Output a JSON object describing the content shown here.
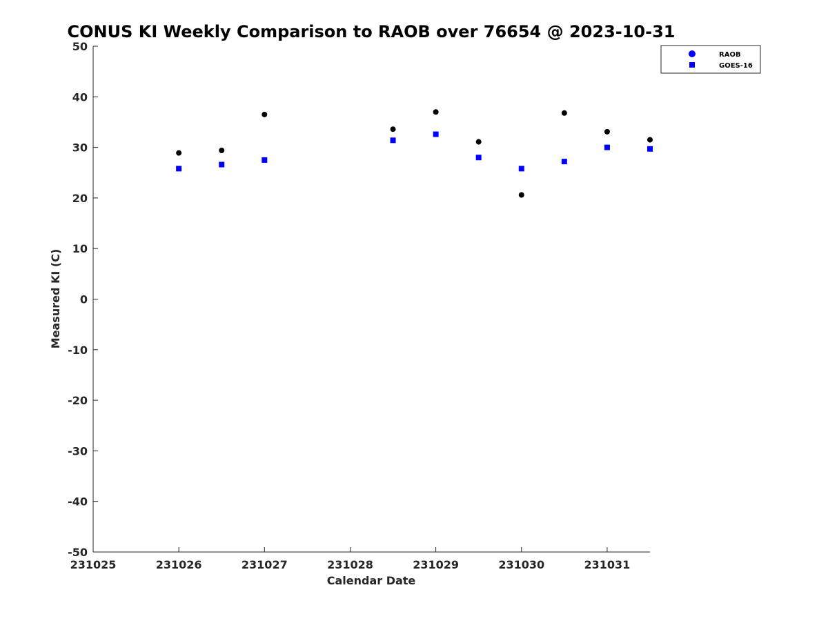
{
  "chart_data": {
    "type": "scatter",
    "title": "CONUS KI Weekly Comparison to RAOB over 76654 @ 2023-10-31",
    "xlabel": "Calendar Date",
    "ylabel": "Measured KI (C)",
    "xlim": [
      231025,
      231031.5
    ],
    "ylim": [
      -50,
      50
    ],
    "x_ticks": [
      231025,
      231026,
      231027,
      231028,
      231029,
      231030,
      231031
    ],
    "x_tick_labels": [
      "231025",
      "231026",
      "231027",
      "231028",
      "231029",
      "231030",
      "231031"
    ],
    "y_ticks": [
      -50,
      -40,
      -30,
      -20,
      -10,
      0,
      10,
      20,
      30,
      40,
      50
    ],
    "y_tick_labels": [
      "-50",
      "-40",
      "-30",
      "-20",
      "-10",
      "0",
      "10",
      "20",
      "30",
      "40",
      "50"
    ],
    "grid": false,
    "legend": "top-right",
    "series": [
      {
        "name": "RAOB",
        "marker": "circle",
        "color": "#000000",
        "legend_color": "#0000ff",
        "x": [
          231026,
          231026.5,
          231027,
          231028.5,
          231029,
          231029.5,
          231030,
          231030.5,
          231031,
          231031.5
        ],
        "y": [
          28.9,
          29.4,
          36.5,
          33.6,
          37.0,
          31.1,
          20.6,
          36.8,
          33.1,
          31.5
        ]
      },
      {
        "name": "GOES-16",
        "marker": "square",
        "color": "#0000ff",
        "legend_color": "#0000ff",
        "x": [
          231026,
          231026.5,
          231027,
          231028.5,
          231029,
          231029.5,
          231030,
          231030.5,
          231031,
          231031.5
        ],
        "y": [
          25.8,
          26.6,
          27.5,
          31.4,
          32.6,
          28.0,
          25.8,
          27.2,
          30.0,
          29.7
        ]
      }
    ]
  }
}
